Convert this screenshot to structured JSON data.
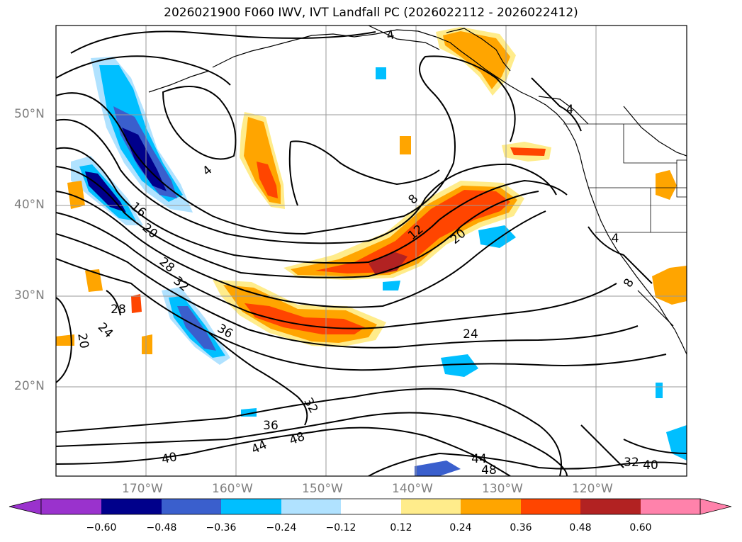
{
  "title": "2026021900 F060 IWV, IVT Landfall PC (2026022112 - 2026022412)",
  "lat_labels": [
    "50°N",
    "40°N",
    "30°N",
    "20°N"
  ],
  "lon_labels": [
    "170°W",
    "160°W",
    "150°W",
    "140°W",
    "130°W",
    "120°W"
  ],
  "contour_labels": [
    "4",
    "4",
    "4",
    "4",
    "8",
    "8",
    "12",
    "16",
    "20",
    "20",
    "20",
    "24",
    "24",
    "28",
    "28",
    "32",
    "32",
    "32",
    "36",
    "36",
    "40",
    "40",
    "44",
    "44",
    "48",
    "48"
  ],
  "colorbar": {
    "ticks": [
      "−0.60",
      "−0.48",
      "−0.36",
      "−0.24",
      "−0.12",
      "0.12",
      "0.24",
      "0.36",
      "0.48",
      "0.60"
    ],
    "colors": [
      "#9a32cd",
      "#00008b",
      "#3a5fcd",
      "#00bfff",
      "#b0e2ff",
      "#ffffff",
      "#ffec8b",
      "#ffa500",
      "#ff4500",
      "#b22222",
      "#ff82ab"
    ]
  }
}
